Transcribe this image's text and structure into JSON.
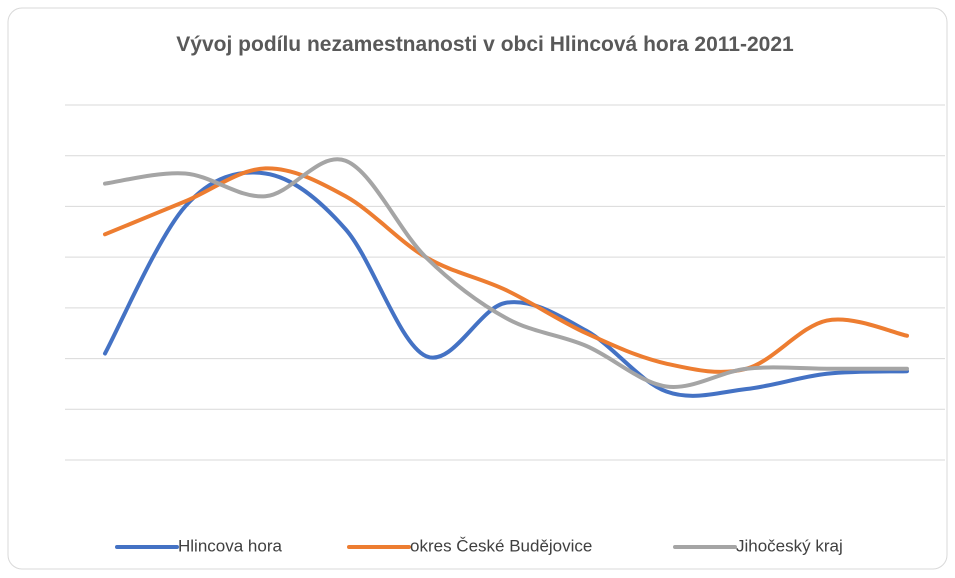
{
  "chart_data": {
    "type": "line",
    "title": "Vývoj podílu nezamestnanosti v obci Hlincová hora 2011-2021",
    "categories": [
      null,
      null,
      null,
      null,
      null,
      null,
      null,
      null,
      null,
      null,
      null
    ],
    "series": [
      {
        "name": "Hlincova hora",
        "color": "#4472c4",
        "values": [
          2.1,
          5.0,
          5.65,
          4.55,
          2.05,
          3.1,
          2.55,
          1.35,
          1.4,
          1.7,
          1.75
        ]
      },
      {
        "name": "okres České Budějovice",
        "color": "#ed7d31",
        "values": [
          4.45,
          5.1,
          5.75,
          5.2,
          4.0,
          3.35,
          2.5,
          1.9,
          1.8,
          2.75,
          2.45
        ]
      },
      {
        "name": "Jihočeský kraj",
        "color": "#a5a5a5",
        "values": [
          5.45,
          5.65,
          5.2,
          5.9,
          4.0,
          2.8,
          2.25,
          1.45,
          1.8,
          1.8,
          1.8
        ]
      }
    ],
    "ylim": [
      0,
      7
    ],
    "yticks": [
      0,
      1,
      2,
      3,
      4,
      5,
      6,
      7
    ],
    "grid": true,
    "legend": "bottom"
  }
}
